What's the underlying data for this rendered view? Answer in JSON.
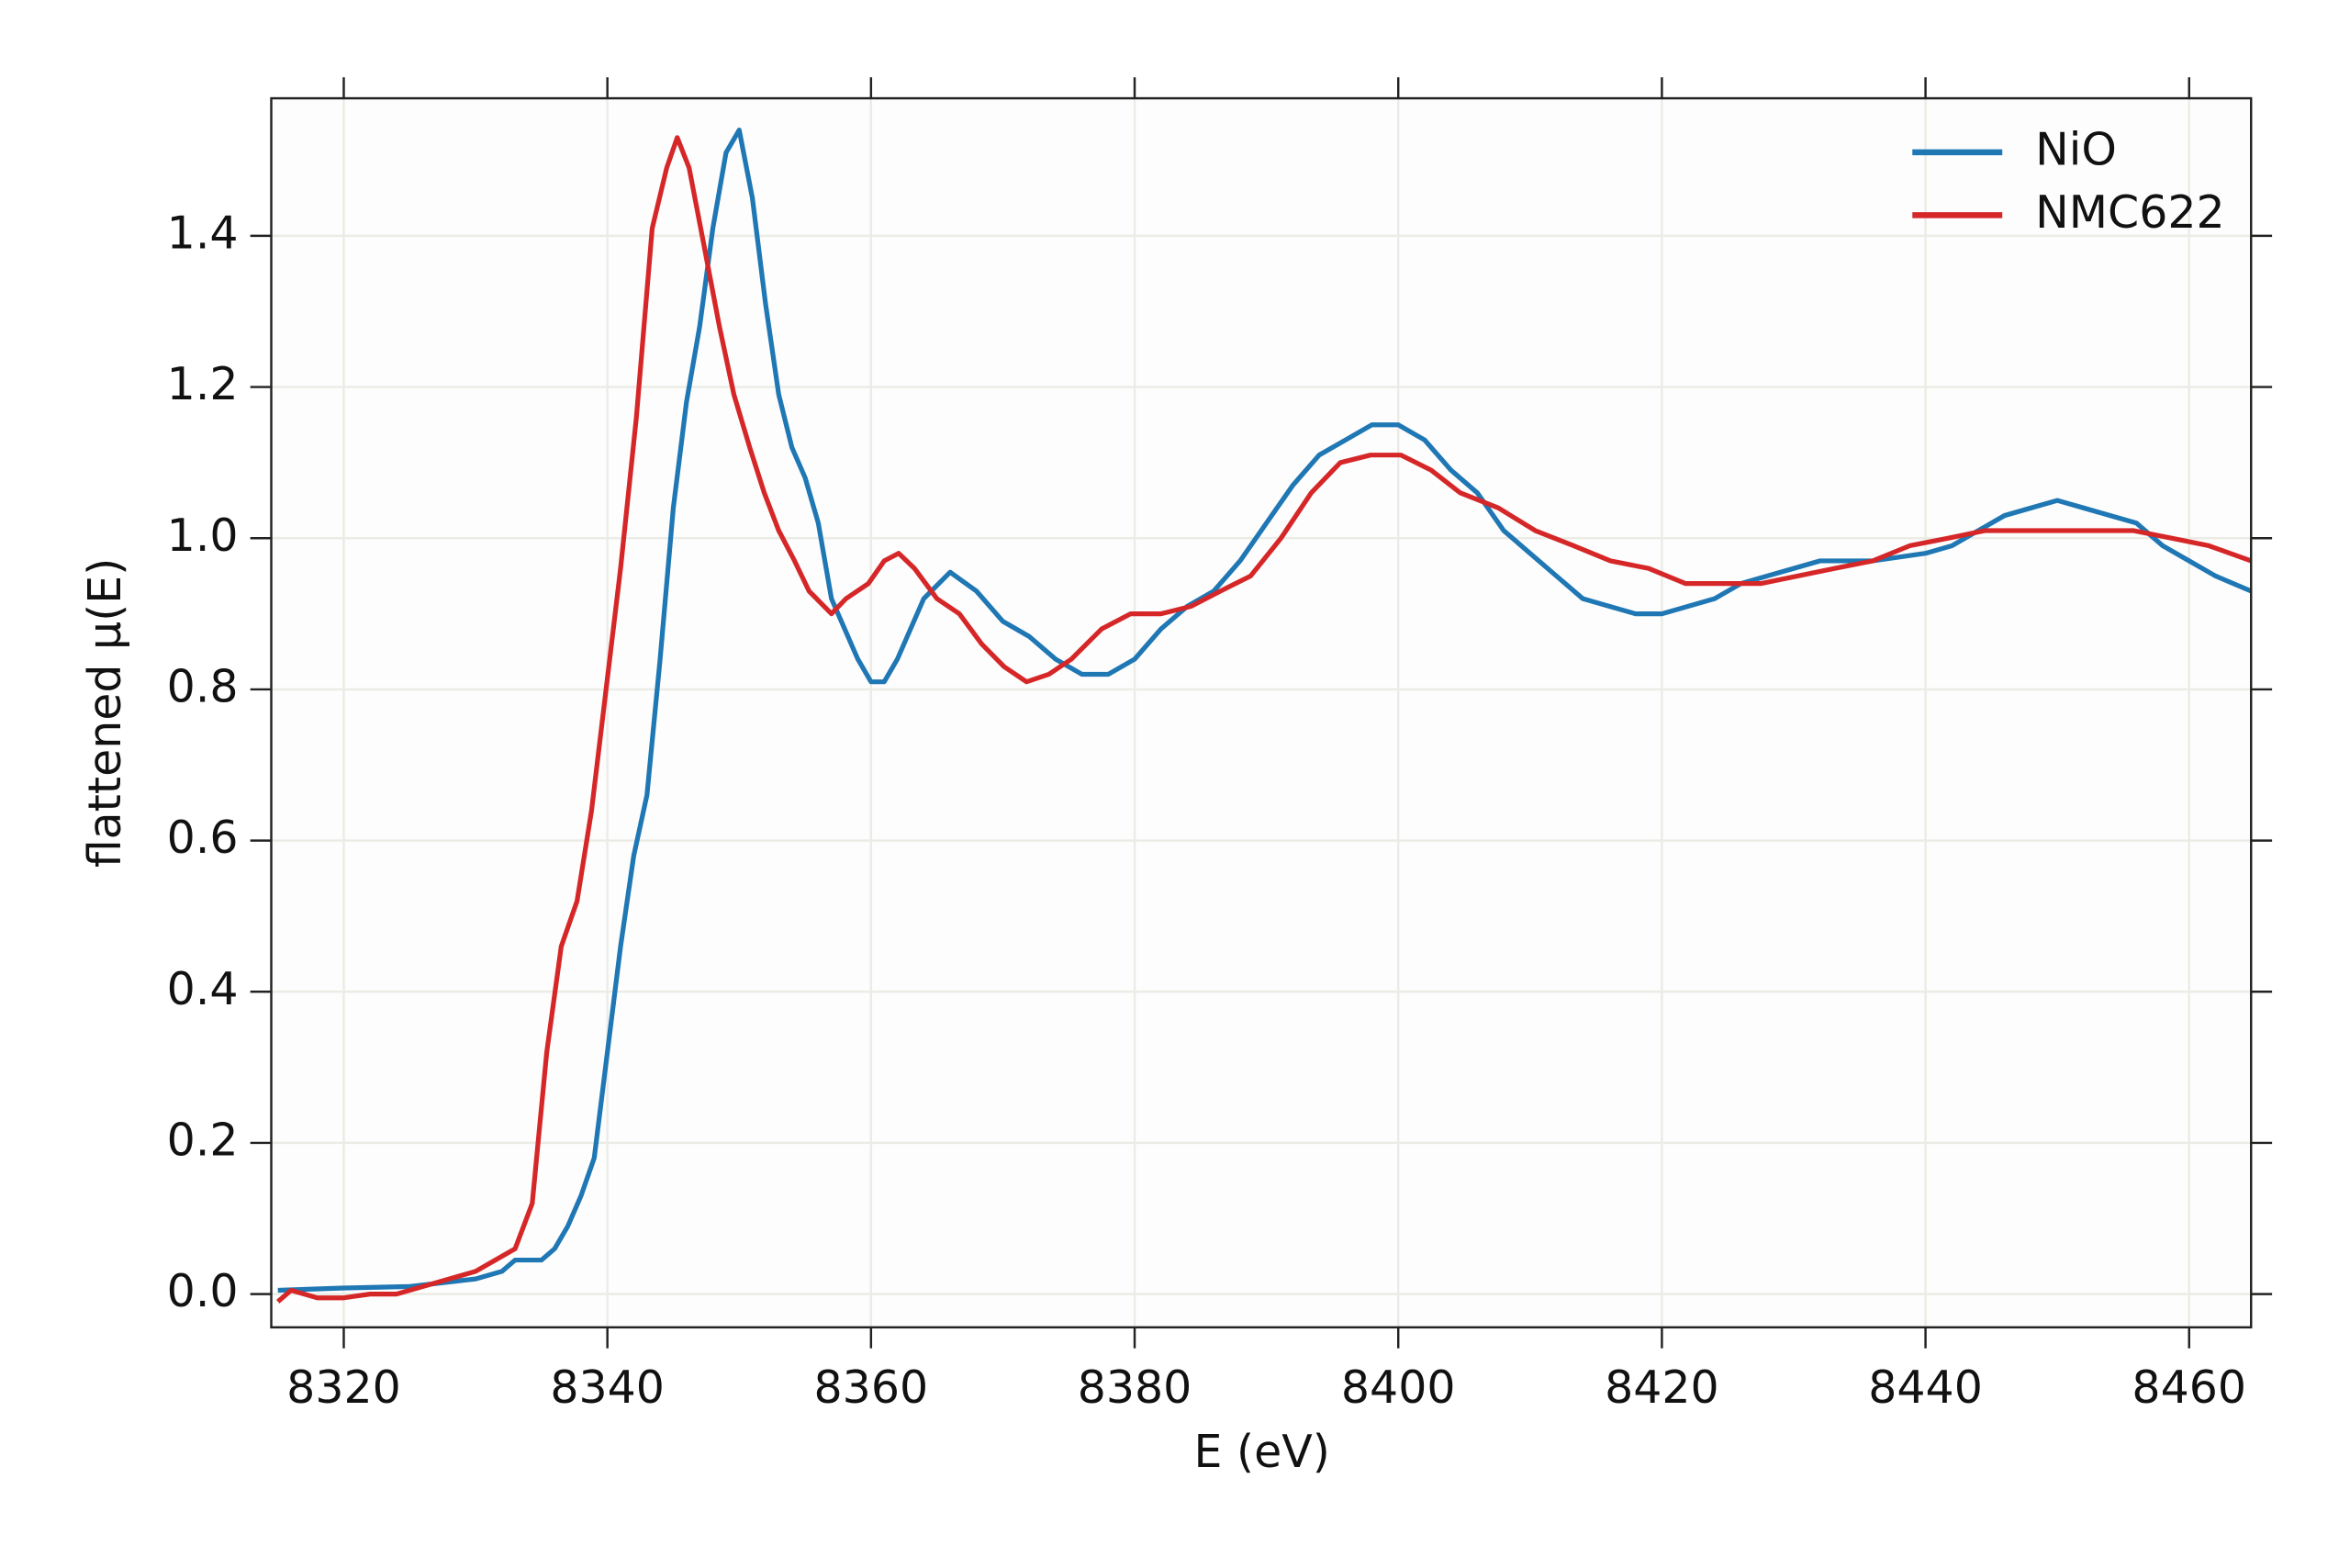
{
  "chart_data": {
    "type": "line",
    "x_label": "E (eV)",
    "y_label": "flattened μ(E)",
    "xlim": [
      8314.5,
      8464.7
    ],
    "ylim": [
      -0.044,
      1.582
    ],
    "xticks": [
      8320,
      8340,
      8360,
      8380,
      8400,
      8420,
      8440,
      8460
    ],
    "yticks": [
      {
        "value": 0,
        "label": "0.0"
      },
      0.2,
      0.4,
      0.6,
      0.8,
      {
        "value": 1,
        "label": "1.0"
      },
      1.2,
      1.4
    ],
    "grid": true,
    "legend": "upper right",
    "series": [
      {
        "name": "NiO",
        "color": "#1f77b4",
        "x": [
          8315,
          8320,
          8325,
          8330,
          8332,
          8333,
          8334,
          8335,
          8336,
          8337,
          8338,
          8339,
          8340,
          8341,
          8342,
          8343,
          8344,
          8345,
          8346,
          8347,
          8348,
          8349,
          8350,
          8351,
          8352,
          8353,
          8354,
          8355,
          8356,
          8357,
          8358,
          8359,
          8360,
          8361,
          8362,
          8364,
          8366,
          8368,
          8370,
          8372,
          8374,
          8376,
          8378,
          8380,
          8382,
          8384,
          8386,
          8388,
          8390,
          8392,
          8394,
          8396,
          8398,
          8400,
          8402,
          8404,
          8406,
          8408,
          8410,
          8412,
          8414,
          8416,
          8418,
          8420,
          8422,
          8424,
          8426,
          8428,
          8430,
          8432,
          8436,
          8440,
          8442,
          8444,
          8446,
          8448,
          8450,
          8452,
          8454,
          8456,
          8458,
          8460,
          8462,
          8464.7
        ],
        "values": [
          0.005,
          0.008,
          0.01,
          0.02,
          0.03,
          0.045,
          0.045,
          0.045,
          0.06,
          0.09,
          0.13,
          0.18,
          0.32,
          0.46,
          0.58,
          0.66,
          0.84,
          1.04,
          1.18,
          1.28,
          1.41,
          1.51,
          1.54,
          1.45,
          1.31,
          1.19,
          1.12,
          1.08,
          1.02,
          0.92,
          0.88,
          0.84,
          0.81,
          0.81,
          0.84,
          0.92,
          0.955,
          0.93,
          0.89,
          0.87,
          0.84,
          0.82,
          0.82,
          0.84,
          0.88,
          0.91,
          0.93,
          0.97,
          1.02,
          1.07,
          1.11,
          1.13,
          1.15,
          1.15,
          1.13,
          1.09,
          1.06,
          1.01,
          0.98,
          0.95,
          0.92,
          0.91,
          0.9,
          0.9,
          0.91,
          0.92,
          0.94,
          0.95,
          0.96,
          0.97,
          0.97,
          0.98,
          0.99,
          1.01,
          1.03,
          1.04,
          1.05,
          1.04,
          1.03,
          1.02,
          0.99,
          0.97,
          0.95,
          0.93
        ]
      },
      {
        "name": "NMC622",
        "color": "#d62728",
        "x": [
          8315,
          8316,
          8318,
          8320,
          8322,
          8324,
          8326,
          8328,
          8330,
          8332,
          8333,
          8334.3,
          8335.4,
          8336.5,
          8337.7,
          8338.8,
          8339.9,
          8341,
          8342.2,
          8343.4,
          8344.5,
          8345.3,
          8346.2,
          8347.3,
          8348.5,
          8349.6,
          8350.8,
          8351.9,
          8353,
          8354.2,
          8355.3,
          8357,
          8358.1,
          8359.8,
          8361,
          8362.1,
          8363.3,
          8365,
          8366.7,
          8368.4,
          8370.1,
          8371.8,
          8373.5,
          8375.2,
          8377.5,
          8379.7,
          8382,
          8384.3,
          8386.5,
          8388.8,
          8391.1,
          8393.4,
          8395.6,
          8397.9,
          8400.2,
          8402.5,
          8404.7,
          8407.6,
          8410.4,
          8413.3,
          8416.1,
          8419,
          8421.8,
          8424.6,
          8427.5,
          8430.3,
          8433.1,
          8436,
          8438.8,
          8441.7,
          8444.5,
          8447.3,
          8450.2,
          8453,
          8455.8,
          8458.7,
          8461.5,
          8464.7
        ],
        "values": [
          -0.01,
          0.005,
          -0.005,
          -0.005,
          0.0,
          0.0,
          0.01,
          0.02,
          0.03,
          0.05,
          0.06,
          0.12,
          0.32,
          0.46,
          0.52,
          0.64,
          0.8,
          0.96,
          1.16,
          1.41,
          1.49,
          1.53,
          1.49,
          1.39,
          1.28,
          1.19,
          1.12,
          1.06,
          1.01,
          0.97,
          0.93,
          0.9,
          0.92,
          0.94,
          0.97,
          0.98,
          0.96,
          0.92,
          0.9,
          0.86,
          0.83,
          0.81,
          0.82,
          0.84,
          0.88,
          0.9,
          0.9,
          0.91,
          0.93,
          0.95,
          1.0,
          1.06,
          1.1,
          1.11,
          1.11,
          1.09,
          1.06,
          1.04,
          1.01,
          0.99,
          0.97,
          0.96,
          0.94,
          0.94,
          0.94,
          0.95,
          0.96,
          0.97,
          0.99,
          1.0,
          1.01,
          1.01,
          1.01,
          1.01,
          1.01,
          1.0,
          0.99,
          0.97
        ]
      }
    ]
  }
}
